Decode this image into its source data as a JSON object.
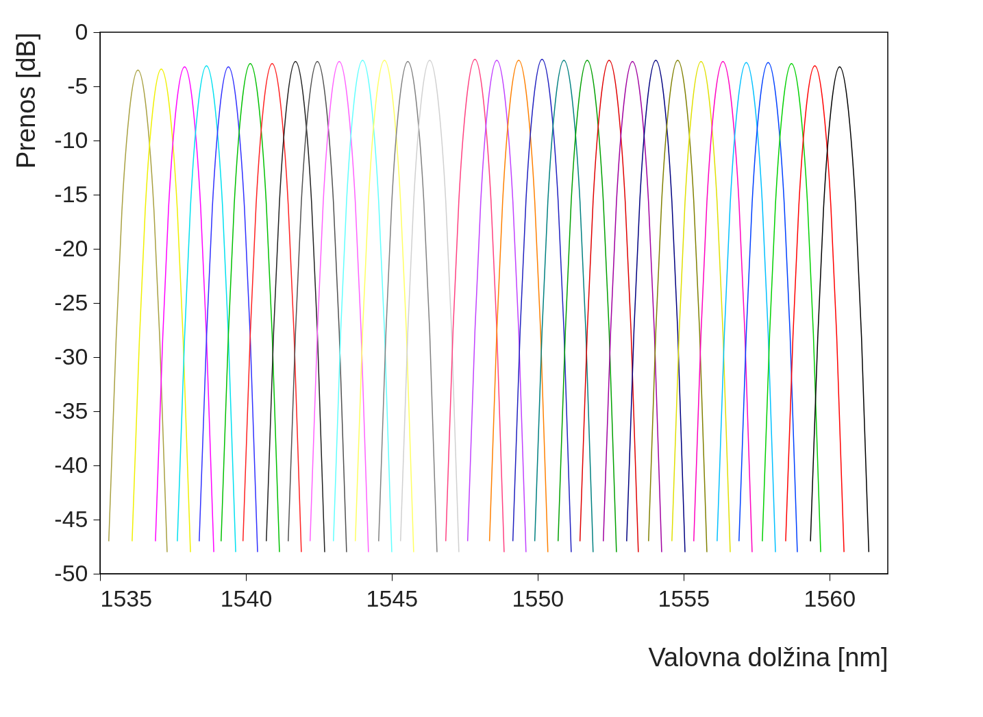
{
  "chart_data": {
    "type": "line",
    "xlabel": "Valovna dolžina [nm]",
    "ylabel": "Prenos [dB]",
    "xlim": [
      1535,
      1562
    ],
    "ylim": [
      -50,
      0
    ],
    "xticks": [
      1535,
      1540,
      1545,
      1550,
      1555,
      1560
    ],
    "yticks": [
      -50,
      -45,
      -40,
      -35,
      -30,
      -25,
      -20,
      -15,
      -10,
      -5,
      0
    ],
    "series": [
      {
        "color": "#a8a040",
        "x": [
          1535.3,
          1535.55,
          1535.75,
          1536,
          1536.3,
          1536.6,
          1536.85,
          1537.05,
          1537.3
        ],
        "values": [
          -47,
          -28.5,
          -16.5,
          -7.5,
          -3.5,
          -7.5,
          -16.5,
          -28.5,
          -48
        ]
      },
      {
        "color": "#f0f000",
        "x": [
          1536.1,
          1536.35,
          1536.55,
          1536.8,
          1537.1,
          1537.4,
          1537.65,
          1537.85,
          1538.1
        ],
        "values": [
          -47,
          -28.4,
          -16.4,
          -7.4,
          -3.4,
          -7.4,
          -16.4,
          -28.4,
          -48
        ]
      },
      {
        "color": "#ff00ff",
        "x": [
          1536.9,
          1537.15,
          1537.35,
          1537.6,
          1537.9,
          1538.2,
          1538.45,
          1538.65,
          1538.9
        ],
        "values": [
          -47,
          -28.2,
          -16.2,
          -7.2,
          -3.2,
          -7.2,
          -16.2,
          -28.2,
          -48
        ]
      },
      {
        "color": "#00e0f0",
        "x": [
          1537.65,
          1537.9,
          1538.1,
          1538.35,
          1538.65,
          1538.95,
          1539.2,
          1539.4,
          1539.65
        ],
        "values": [
          -47,
          -28.1,
          -16.1,
          -7.1,
          -3.1,
          -7.1,
          -16.1,
          -28.1,
          -48
        ]
      },
      {
        "color": "#3030ff",
        "x": [
          1538.4,
          1538.65,
          1538.85,
          1539.1,
          1539.4,
          1539.7,
          1539.95,
          1540.15,
          1540.4
        ],
        "values": [
          -47,
          -28.2,
          -16.2,
          -7.2,
          -3.2,
          -7.2,
          -16.2,
          -28.2,
          -48
        ]
      },
      {
        "color": "#00c000",
        "x": [
          1539.15,
          1539.4,
          1539.6,
          1539.85,
          1540.15,
          1540.45,
          1540.7,
          1540.9,
          1541.15
        ],
        "values": [
          -47,
          -27.9,
          -15.9,
          -6.9,
          -2.9,
          -6.9,
          -15.9,
          -27.9,
          -48
        ]
      },
      {
        "color": "#ff2020",
        "x": [
          1539.9,
          1540.15,
          1540.35,
          1540.6,
          1540.9,
          1541.2,
          1541.45,
          1541.65,
          1541.9
        ],
        "values": [
          -47,
          -27.9,
          -15.9,
          -6.9,
          -2.9,
          -6.9,
          -15.9,
          -27.9,
          -48
        ]
      },
      {
        "color": "#202020",
        "x": [
          1540.7,
          1540.95,
          1541.15,
          1541.4,
          1541.7,
          1542,
          1542.25,
          1542.45,
          1542.7
        ],
        "values": [
          -47,
          -27.7,
          -15.7,
          -6.7,
          -2.7,
          -6.7,
          -15.7,
          -27.7,
          -48
        ]
      },
      {
        "color": "#505050",
        "x": [
          1541.45,
          1541.7,
          1541.9,
          1542.15,
          1542.45,
          1542.75,
          1543,
          1543.2,
          1543.45
        ],
        "values": [
          -47,
          -27.7,
          -15.7,
          -6.7,
          -2.7,
          -6.7,
          -15.7,
          -27.7,
          -48
        ]
      },
      {
        "color": "#ff60ff",
        "x": [
          1542.2,
          1542.45,
          1542.65,
          1542.9,
          1543.2,
          1543.5,
          1543.75,
          1543.95,
          1544.2
        ],
        "values": [
          -47,
          -27.7,
          -15.7,
          -6.7,
          -2.7,
          -6.7,
          -15.7,
          -27.7,
          -48
        ]
      },
      {
        "color": "#60ffff",
        "x": [
          1543,
          1543.25,
          1543.45,
          1543.7,
          1544,
          1544.3,
          1544.55,
          1544.75,
          1545
        ],
        "values": [
          -47,
          -27.6,
          -15.6,
          -6.6,
          -2.6,
          -6.6,
          -15.6,
          -27.6,
          -48
        ]
      },
      {
        "color": "#ffff60",
        "x": [
          1543.75,
          1544,
          1544.2,
          1544.45,
          1544.75,
          1545.05,
          1545.3,
          1545.5,
          1545.75
        ],
        "values": [
          -47,
          -27.6,
          -15.6,
          -6.6,
          -2.6,
          -6.6,
          -15.6,
          -27.6,
          -48
        ]
      },
      {
        "color": "#808080",
        "x": [
          1544.55,
          1544.8,
          1545,
          1545.25,
          1545.55,
          1545.85,
          1546.1,
          1546.3,
          1546.55
        ],
        "values": [
          -47,
          -27.7,
          -15.7,
          -6.7,
          -2.7,
          -6.7,
          -15.7,
          -27.7,
          -48
        ]
      },
      {
        "color": "#d0d0d0",
        "x": [
          1545.3,
          1545.55,
          1545.75,
          1546,
          1546.3,
          1546.6,
          1546.85,
          1547.05,
          1547.3
        ],
        "values": [
          -47,
          -27.6,
          -15.6,
          -6.6,
          -2.6,
          -6.6,
          -15.6,
          -27.6,
          -48
        ]
      },
      {
        "color": "#ff4080",
        "x": [
          1546.85,
          1547.1,
          1547.3,
          1547.55,
          1547.85,
          1548.15,
          1548.4,
          1548.6,
          1548.85
        ],
        "values": [
          -47,
          -27.5,
          -15.5,
          -6.5,
          -2.5,
          -6.5,
          -15.5,
          -27.5,
          -48
        ]
      },
      {
        "color": "#c040ff",
        "x": [
          1547.6,
          1547.85,
          1548.05,
          1548.3,
          1548.6,
          1548.9,
          1549.15,
          1549.35,
          1549.6
        ],
        "values": [
          -47,
          -27.6,
          -15.6,
          -6.6,
          -2.6,
          -6.6,
          -15.6,
          -27.6,
          -48
        ]
      },
      {
        "color": "#ff8000",
        "x": [
          1548.35,
          1548.6,
          1548.8,
          1549.05,
          1549.35,
          1549.65,
          1549.9,
          1550.1,
          1550.35
        ],
        "values": [
          -47,
          -27.6,
          -15.6,
          -6.6,
          -2.6,
          -6.6,
          -15.6,
          -27.6,
          -48
        ]
      },
      {
        "color": "#2020c0",
        "x": [
          1549.15,
          1549.4,
          1549.6,
          1549.85,
          1550.15,
          1550.45,
          1550.7,
          1550.9,
          1551.15
        ],
        "values": [
          -47,
          -27.5,
          -15.5,
          -6.5,
          -2.5,
          -6.5,
          -15.5,
          -27.5,
          -48
        ]
      },
      {
        "color": "#008080",
        "x": [
          1549.9,
          1550.15,
          1550.35,
          1550.6,
          1550.9,
          1551.2,
          1551.45,
          1551.65,
          1551.9
        ],
        "values": [
          -47,
          -27.6,
          -15.6,
          -6.6,
          -2.6,
          -6.6,
          -15.6,
          -27.6,
          -48
        ]
      },
      {
        "color": "#00a000",
        "x": [
          1550.7,
          1550.95,
          1551.15,
          1551.4,
          1551.7,
          1552,
          1552.25,
          1552.45,
          1552.7
        ],
        "values": [
          -47,
          -27.6,
          -15.6,
          -6.6,
          -2.6,
          -6.6,
          -15.6,
          -27.6,
          -48
        ]
      },
      {
        "color": "#e00000",
        "x": [
          1551.45,
          1551.7,
          1551.9,
          1552.15,
          1552.45,
          1552.75,
          1553,
          1553.2,
          1553.45
        ],
        "values": [
          -47,
          -27.6,
          -15.6,
          -6.6,
          -2.6,
          -6.6,
          -15.6,
          -27.6,
          -48
        ]
      },
      {
        "color": "#a000a0",
        "x": [
          1552.25,
          1552.5,
          1552.7,
          1552.95,
          1553.25,
          1553.55,
          1553.8,
          1554,
          1554.25
        ],
        "values": [
          -47,
          -27.7,
          -15.7,
          -6.7,
          -2.7,
          -6.7,
          -15.7,
          -27.7,
          -48
        ]
      },
      {
        "color": "#000080",
        "x": [
          1553.05,
          1553.3,
          1553.5,
          1553.75,
          1554.05,
          1554.35,
          1554.6,
          1554.8,
          1555.05
        ],
        "values": [
          -47,
          -27.6,
          -15.6,
          -6.6,
          -2.6,
          -6.6,
          -15.6,
          -27.6,
          -48
        ]
      },
      {
        "color": "#808000",
        "x": [
          1553.8,
          1554.05,
          1554.25,
          1554.5,
          1554.8,
          1555.1,
          1555.35,
          1555.55,
          1555.8
        ],
        "values": [
          -47,
          -27.6,
          -15.6,
          -6.6,
          -2.6,
          -6.6,
          -15.6,
          -27.6,
          -48
        ]
      },
      {
        "color": "#e0e000",
        "x": [
          1554.6,
          1554.85,
          1555.05,
          1555.3,
          1555.6,
          1555.9,
          1556.15,
          1556.35,
          1556.6
        ],
        "values": [
          -47,
          -27.7,
          -15.7,
          -6.7,
          -2.7,
          -6.7,
          -15.7,
          -27.7,
          -48
        ]
      },
      {
        "color": "#ff00c0",
        "x": [
          1555.35,
          1555.6,
          1555.8,
          1556.05,
          1556.35,
          1556.65,
          1556.9,
          1557.1,
          1557.35
        ],
        "values": [
          -47,
          -27.7,
          -15.7,
          -6.7,
          -2.7,
          -6.7,
          -15.7,
          -27.7,
          -48
        ]
      },
      {
        "color": "#00c0ff",
        "x": [
          1556.15,
          1556.4,
          1556.6,
          1556.85,
          1557.15,
          1557.45,
          1557.7,
          1557.9,
          1558.15
        ],
        "values": [
          -47,
          -27.8,
          -15.8,
          -6.8,
          -2.8,
          -6.8,
          -15.8,
          -27.8,
          -48
        ]
      },
      {
        "color": "#0040ff",
        "x": [
          1556.9,
          1557.15,
          1557.35,
          1557.6,
          1557.9,
          1558.2,
          1558.45,
          1558.65,
          1558.9
        ],
        "values": [
          -47,
          -27.8,
          -15.8,
          -6.8,
          -2.8,
          -6.8,
          -15.8,
          -27.8,
          -48
        ]
      },
      {
        "color": "#00d000",
        "x": [
          1557.7,
          1557.95,
          1558.15,
          1558.4,
          1558.7,
          1559,
          1559.25,
          1559.45,
          1559.7
        ],
        "values": [
          -47,
          -27.9,
          -15.9,
          -6.9,
          -2.9,
          -6.9,
          -15.9,
          -27.9,
          -48
        ]
      },
      {
        "color": "#ff0000",
        "x": [
          1558.5,
          1558.75,
          1558.95,
          1559.2,
          1559.5,
          1559.8,
          1560.05,
          1560.25,
          1560.5
        ],
        "values": [
          -47,
          -28.1,
          -16.1,
          -7.1,
          -3.1,
          -7.1,
          -16.1,
          -28.1,
          -48
        ]
      },
      {
        "color": "#000000",
        "x": [
          1559.35,
          1559.6,
          1559.8,
          1560.05,
          1560.35,
          1560.65,
          1560.9,
          1561.1,
          1561.35
        ],
        "values": [
          -47,
          -28.2,
          -16.2,
          -7.2,
          -3.2,
          -7.2,
          -16.2,
          -28.2,
          -48
        ]
      }
    ]
  }
}
